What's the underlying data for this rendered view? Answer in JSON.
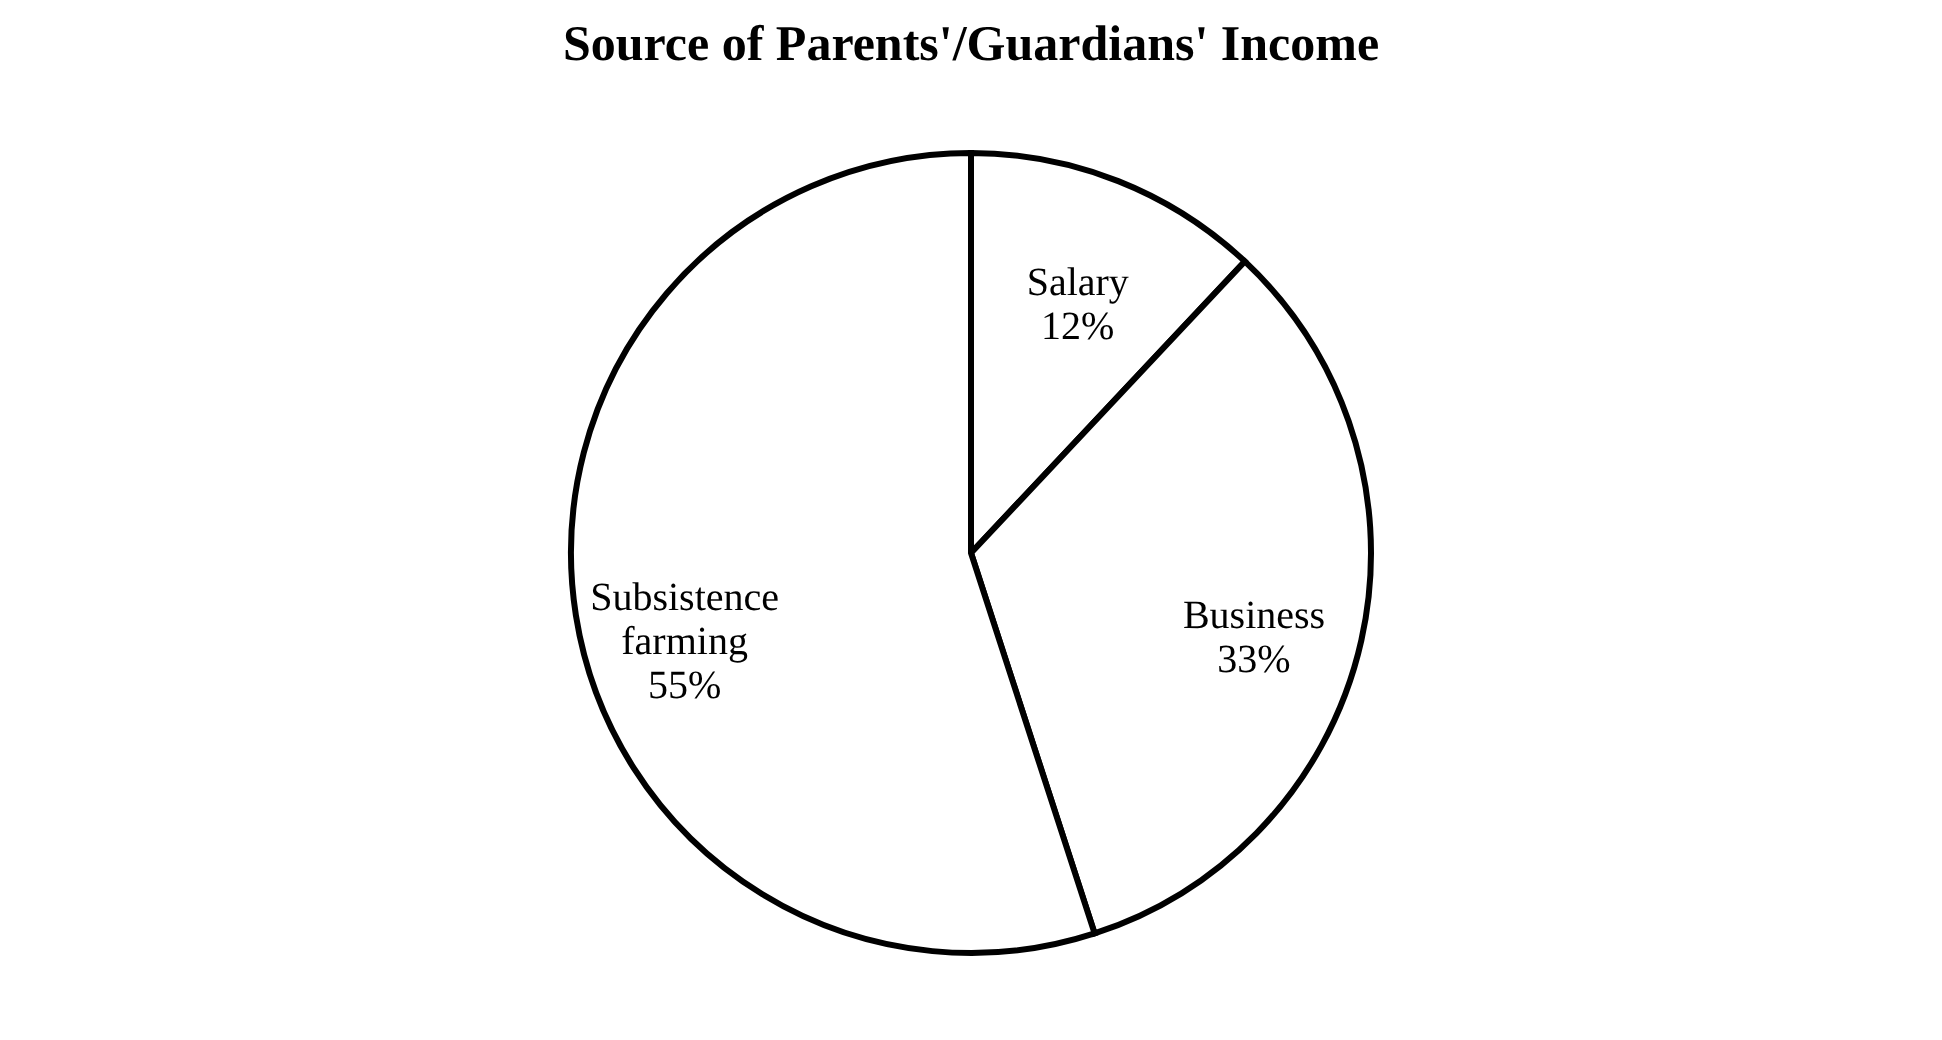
{
  "chart_data": {
    "type": "pie",
    "title": "Source of Parents'/Guardians' Income",
    "categories": [
      "Salary",
      "Business",
      "Subsistence farming"
    ],
    "values": [
      12,
      33,
      55
    ],
    "value_labels": [
      "12%",
      "33%",
      "55%"
    ],
    "colors": [
      "#ffffff",
      "#ffffff",
      "#ffffff"
    ],
    "legend": false
  }
}
